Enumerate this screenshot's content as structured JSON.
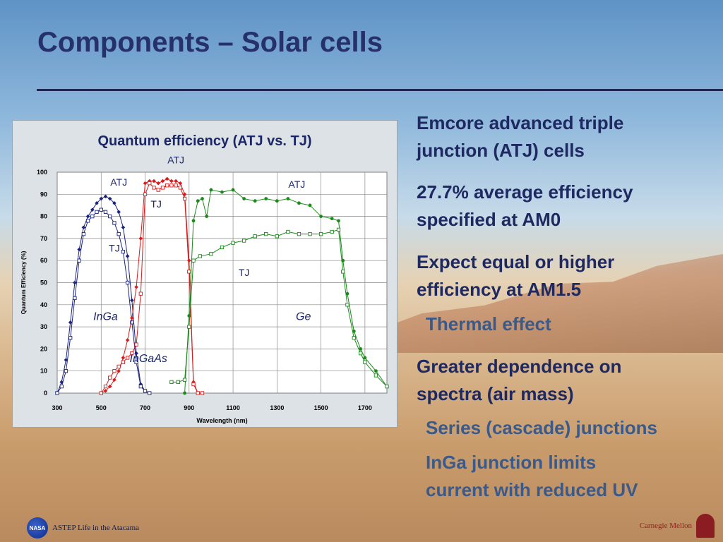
{
  "slide": {
    "title": "Components – Solar cells"
  },
  "bullets": [
    {
      "level": 1,
      "text_lines": [
        "Emcore advanced triple",
        "junction (ATJ) cells"
      ]
    },
    {
      "level": 1,
      "text_lines": [
        "27.7% average efficiency",
        "specified at AM0"
      ]
    },
    {
      "level": 1,
      "text_lines": [
        "Expect equal or higher",
        "efficiency at AM1.5"
      ]
    },
    {
      "level": 2,
      "text_lines": [
        "Thermal effect"
      ]
    },
    {
      "level": 1,
      "text_lines": [
        "Greater dependence on",
        "spectra (air mass)"
      ]
    },
    {
      "level": 2,
      "text_lines": [
        "Series (cascade) junctions"
      ]
    },
    {
      "level": 2,
      "text_lines": [
        "InGa junction limits",
        "current with reduced UV"
      ]
    }
  ],
  "footer": {
    "left_text": "ASTEP Life in the Atacama",
    "right_text": "Carnegie Mellon",
    "left_logo_text": "NASA"
  },
  "chart_data": {
    "type": "line",
    "title": "Quantum efficiency (ATJ vs. TJ)",
    "xlabel": "Wavelength (nm)",
    "ylabel": "Quantum Efficiency (%)",
    "xlim": [
      300,
      1800
    ],
    "ylim": [
      0,
      100
    ],
    "xticks": [
      300,
      500,
      700,
      900,
      1100,
      1300,
      1500,
      1700
    ],
    "yticks": [
      0,
      10,
      20,
      30,
      40,
      50,
      60,
      70,
      80,
      90,
      100
    ],
    "grid": true,
    "annotations": [
      {
        "text": "ATJ",
        "x": 840,
        "y": 104,
        "italic": false
      },
      {
        "text": "ATJ",
        "x": 580,
        "y": 94,
        "italic": false
      },
      {
        "text": "TJ",
        "x": 750,
        "y": 84,
        "italic": false
      },
      {
        "text": "ATJ",
        "x": 1390,
        "y": 93,
        "italic": false
      },
      {
        "text": "TJ",
        "x": 560,
        "y": 64,
        "italic": false
      },
      {
        "text": "TJ",
        "x": 1150,
        "y": 53,
        "italic": false
      },
      {
        "text": "InGa",
        "x": 520,
        "y": 33,
        "italic": true
      },
      {
        "text": "Ge",
        "x": 1420,
        "y": 33,
        "italic": true
      },
      {
        "text": "InGaAs",
        "x": 715,
        "y": 14,
        "italic": true
      }
    ],
    "series": [
      {
        "color": "#1a237e",
        "marker": "filled-diamond",
        "x": [
          300,
          320,
          340,
          360,
          380,
          400,
          420,
          440,
          460,
          480,
          500,
          520,
          540,
          560,
          580,
          600,
          620,
          640,
          660,
          680,
          700,
          720
        ],
        "y": [
          0,
          5,
          15,
          32,
          50,
          65,
          75,
          80,
          83,
          86,
          88,
          89,
          88,
          86,
          82,
          75,
          62,
          42,
          18,
          4,
          1,
          0
        ]
      },
      {
        "color": "#1a237e",
        "marker": "open-square",
        "x": [
          300,
          320,
          340,
          360,
          380,
          400,
          420,
          440,
          460,
          480,
          500,
          520,
          540,
          560,
          580,
          600,
          620,
          640,
          660,
          680,
          700,
          720
        ],
        "y": [
          0,
          3,
          10,
          25,
          43,
          60,
          72,
          78,
          80,
          82,
          83,
          82,
          80,
          77,
          72,
          64,
          50,
          32,
          14,
          3,
          1,
          0
        ]
      },
      {
        "color": "#d81b1b",
        "marker": "filled-diamond",
        "x": [
          500,
          520,
          540,
          560,
          580,
          600,
          620,
          640,
          660,
          680,
          700,
          720,
          740,
          760,
          780,
          800,
          820,
          840,
          860,
          880,
          900,
          920,
          940,
          960
        ],
        "y": [
          0,
          1,
          3,
          6,
          10,
          16,
          24,
          34,
          48,
          70,
          95,
          96,
          96,
          95,
          96,
          97,
          96,
          96,
          95,
          90,
          60,
          5,
          0,
          0
        ]
      },
      {
        "color": "#d81b1b",
        "marker": "open-square",
        "x": [
          500,
          520,
          540,
          560,
          580,
          600,
          620,
          640,
          660,
          680,
          700,
          720,
          740,
          760,
          780,
          800,
          820,
          840,
          860,
          880,
          900,
          920,
          940,
          960
        ],
        "y": [
          0,
          3,
          7,
          10,
          12,
          14,
          16,
          18,
          22,
          45,
          90,
          95,
          93,
          92,
          93,
          94,
          94,
          94,
          93,
          88,
          55,
          4,
          0,
          0
        ]
      },
      {
        "color": "#1b8a1b",
        "marker": "filled-circle",
        "x": [
          880,
          900,
          920,
          940,
          960,
          980,
          1000,
          1050,
          1100,
          1150,
          1200,
          1250,
          1300,
          1350,
          1400,
          1450,
          1500,
          1550,
          1580,
          1600,
          1620,
          1650,
          1680,
          1700,
          1750,
          1800
        ],
        "y": [
          0,
          35,
          78,
          87,
          88,
          80,
          92,
          91,
          92,
          88,
          87,
          88,
          87,
          88,
          86,
          85,
          80,
          79,
          78,
          60,
          45,
          28,
          20,
          16,
          10,
          3
        ]
      },
      {
        "color": "#1b8a1b",
        "marker": "open-square",
        "x": [
          820,
          850,
          880,
          900,
          920,
          950,
          1000,
          1050,
          1100,
          1150,
          1200,
          1250,
          1300,
          1350,
          1400,
          1450,
          1500,
          1550,
          1580,
          1600,
          1620,
          1650,
          1680,
          1700,
          1750,
          1800
        ],
        "y": [
          5,
          5,
          6,
          30,
          60,
          62,
          63,
          66,
          68,
          69,
          71,
          72,
          71,
          73,
          72,
          72,
          72,
          73,
          74,
          55,
          40,
          25,
          18,
          14,
          8,
          3
        ]
      }
    ]
  }
}
